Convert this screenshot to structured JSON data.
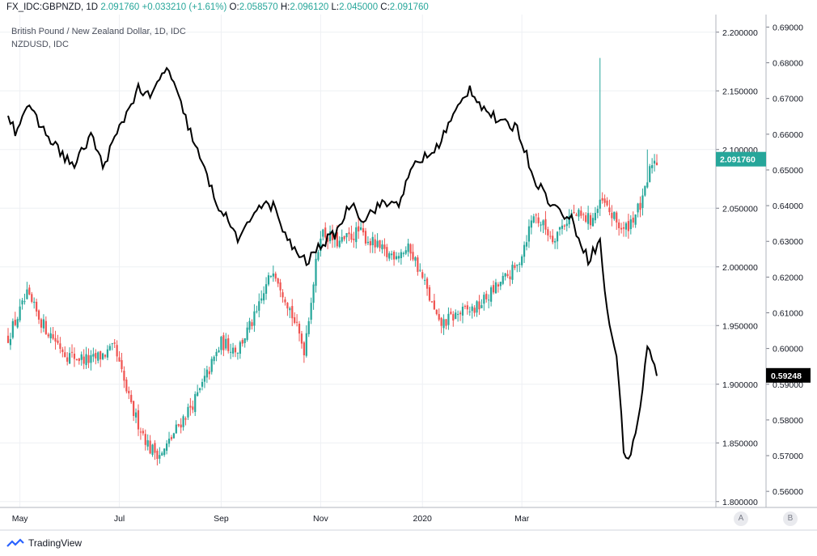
{
  "header": {
    "symbol": "FX_IDC:GBPNZD, 1D",
    "last": "2.091760",
    "change": "+0.033210 (+1.61%)",
    "o_label": "O:",
    "o_value": "2.058570",
    "h_label": "H:",
    "h_value": "2.096120",
    "l_label": "L:",
    "l_value": "2.045000",
    "c_label": "C:",
    "c_value": "2.091760"
  },
  "legend": {
    "main_series": "British Pound / New Zealand Dollar, 1D, IDC",
    "overlay_series": "NZDUSD, IDC"
  },
  "price_badges": {
    "gbpnzd": "2.091760",
    "nzdusd": "0.59248"
  },
  "scale_buttons": {
    "a": "A",
    "b": "B"
  },
  "branding": {
    "name": "TradingView"
  },
  "colors": {
    "up": "#26a69a",
    "down": "#ef5350",
    "overlay": "#000000",
    "grid": "#eef0f4",
    "axis_text": "#131722",
    "badge_green": "#26a69a"
  },
  "chart_data": {
    "type": "candlestick-with-line-overlay",
    "x_ticks": [
      "May",
      "Jul",
      "Sep",
      "Nov",
      "2020",
      "Mar"
    ],
    "y_left_ticks_gbpnzd": [
      "2.200000",
      "2.150000",
      "2.100000",
      "2.050000",
      "2.000000",
      "1.950000",
      "1.900000",
      "1.850000",
      "1.800000"
    ],
    "y_right_ticks_nzdusd": [
      "0.69000",
      "0.68000",
      "0.67000",
      "0.66000",
      "0.65000",
      "0.64000",
      "0.63000",
      "0.62000",
      "0.61000",
      "0.60000",
      "0.59000",
      "0.58000",
      "0.57000",
      "0.56000"
    ],
    "gbpnzd_range": [
      1.795,
      2.215
    ],
    "nzdusd_range": [
      0.5555,
      0.6935
    ],
    "gbpnzd_close_anchors": [
      [
        0,
        1.94
      ],
      [
        8,
        1.975
      ],
      [
        15,
        1.95
      ],
      [
        25,
        1.925
      ],
      [
        35,
        1.92
      ],
      [
        45,
        1.93
      ],
      [
        52,
        1.88
      ],
      [
        60,
        1.845
      ],
      [
        65,
        1.84
      ],
      [
        72,
        1.865
      ],
      [
        80,
        1.89
      ],
      [
        90,
        1.935
      ],
      [
        97,
        1.93
      ],
      [
        105,
        1.96
      ],
      [
        112,
        2.0
      ],
      [
        118,
        1.97
      ],
      [
        125,
        1.93
      ],
      [
        132,
        2.03
      ],
      [
        140,
        2.02
      ],
      [
        148,
        2.03
      ],
      [
        160,
        2.01
      ],
      [
        170,
        2.015
      ],
      [
        176,
        1.985
      ],
      [
        182,
        1.95
      ],
      [
        190,
        1.96
      ],
      [
        198,
        1.965
      ],
      [
        205,
        1.98
      ],
      [
        215,
        2.0
      ],
      [
        222,
        2.045
      ],
      [
        230,
        2.025
      ],
      [
        238,
        2.045
      ],
      [
        246,
        2.04
      ],
      [
        251,
        2.055
      ],
      [
        260,
        2.03
      ],
      [
        268,
        2.055
      ],
      [
        272,
        2.09
      ]
    ],
    "nzdusd_close_anchors": [
      [
        0,
        0.666
      ],
      [
        3,
        0.661
      ],
      [
        8,
        0.668
      ],
      [
        14,
        0.662
      ],
      [
        22,
        0.655
      ],
      [
        28,
        0.651
      ],
      [
        35,
        0.66
      ],
      [
        40,
        0.651
      ],
      [
        48,
        0.663
      ],
      [
        55,
        0.673
      ],
      [
        60,
        0.67
      ],
      [
        67,
        0.679
      ],
      [
        72,
        0.67
      ],
      [
        80,
        0.655
      ],
      [
        88,
        0.641
      ],
      [
        98,
        0.63
      ],
      [
        105,
        0.64
      ],
      [
        112,
        0.64
      ],
      [
        118,
        0.63
      ],
      [
        126,
        0.624
      ],
      [
        132,
        0.629
      ],
      [
        138,
        0.632
      ],
      [
        145,
        0.641
      ],
      [
        150,
        0.636
      ],
      [
        156,
        0.64
      ],
      [
        165,
        0.641
      ],
      [
        172,
        0.652
      ],
      [
        180,
        0.655
      ],
      [
        188,
        0.665
      ],
      [
        195,
        0.673
      ],
      [
        200,
        0.668
      ],
      [
        208,
        0.663
      ],
      [
        215,
        0.662
      ],
      [
        222,
        0.648
      ],
      [
        230,
        0.64
      ],
      [
        238,
        0.636
      ],
      [
        245,
        0.625
      ],
      [
        250,
        0.63
      ],
      [
        253,
        0.61
      ],
      [
        257,
        0.598
      ],
      [
        260,
        0.572
      ],
      [
        262,
        0.569
      ],
      [
        264,
        0.573
      ],
      [
        267,
        0.584
      ],
      [
        270,
        0.6
      ],
      [
        272,
        0.598
      ],
      [
        274,
        0.5925
      ]
    ],
    "gbpnzd_spikes": [
      {
        "index": 250,
        "high": 2.178
      },
      {
        "index": 270,
        "high": 2.1
      },
      {
        "index": 274,
        "high": 2.096
      }
    ],
    "bars": 275
  }
}
